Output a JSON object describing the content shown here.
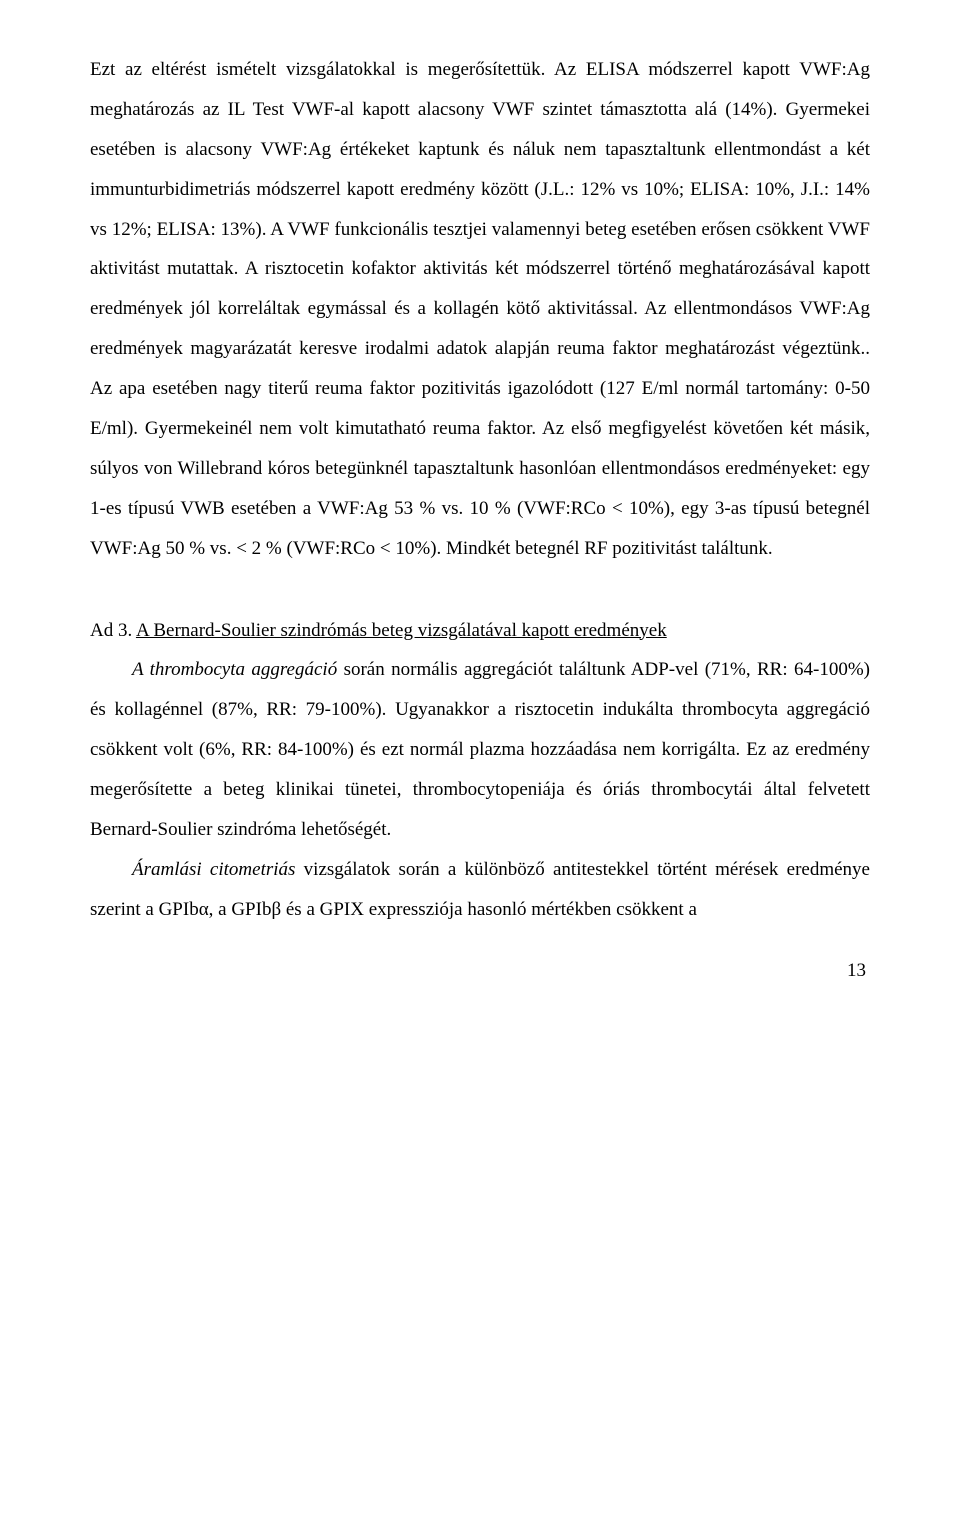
{
  "paragraphs": {
    "p1": "Ezt az eltérést ismételt vizsgálatokkal is megerősítettük. Az ELISA módszerrel kapott VWF:Ag meghatározás az IL Test VWF-al kapott alacsony VWF szintet támasztotta alá (14%). Gyermekei esetében is alacsony VWF:Ag értékeket kaptunk és náluk nem tapasztaltunk ellentmondást a két immunturbidimetriás módszerrel kapott eredmény között (J.L.: 12% vs 10%; ELISA: 10%, J.I.: 14% vs 12%; ELISA: 13%). A VWF funkcionális tesztjei valamennyi beteg esetében erősen csökkent VWF aktivitást mutattak. A risztocetin kofaktor aktivitás két módszerrel történő meghatározásával kapott eredmények jól korreláltak egymással és a kollagén kötő aktivitással.  Az ellentmondásos VWF:Ag eredmények magyarázatát keresve irodalmi adatok alapján reuma faktor meghatározást végeztünk.. Az apa esetében nagy titerű reuma faktor pozitivitás igazolódott (127 E/ml normál tartomány: 0-50 E/ml). Gyermekeinél nem volt kimutatható reuma faktor.",
    "p1b": " Az első megfigyelést követően két másik, súlyos von Willebrand kóros betegünknél tapasztaltunk hasonlóan ellentmondásos eredményeket:",
    "p1c": " egy 1-es típusú VWB esetében a VWF:Ag 53 % vs. 10 % (VWF:RCo < 10%), egy 3-as típusú betegnél VWF:Ag 50 % vs. < 2 % (VWF:RCo < 10%). Mindkét betegnél RF pozitivitást találtunk.",
    "heading_prefix": "Ad 3. ",
    "heading_underline": "A Bernard-Soulier szindrómás beteg vizsgálatával kapott eredmények",
    "p2_italic": "A thrombocyta aggregáció",
    "p2_rest": " során normális aggregációt találtunk ADP-vel (71%, RR: 64-100%) és kollagénnel (87%, RR: 79-100%). Ugyanakkor a risztocetin indukálta thrombocyta aggregáció csökkent volt (6%, RR: 84-100%) és ezt normál plazma hozzáadása nem korrigálta. Ez az eredmény megerősítette a beteg klinikai tünetei, thrombocytopeniája és óriás thrombocytái által felvetett Bernard-Soulier szindróma lehetőségét.",
    "p3_italic": "Áramlási citometriás",
    "p3_rest": " vizsgálatok során a különböző antitestekkel történt mérések eredménye szerint a GPIbα, a GPIbβ és a GPIX expressziója hasonló mértékben csökkent a"
  },
  "page_number": "13"
}
